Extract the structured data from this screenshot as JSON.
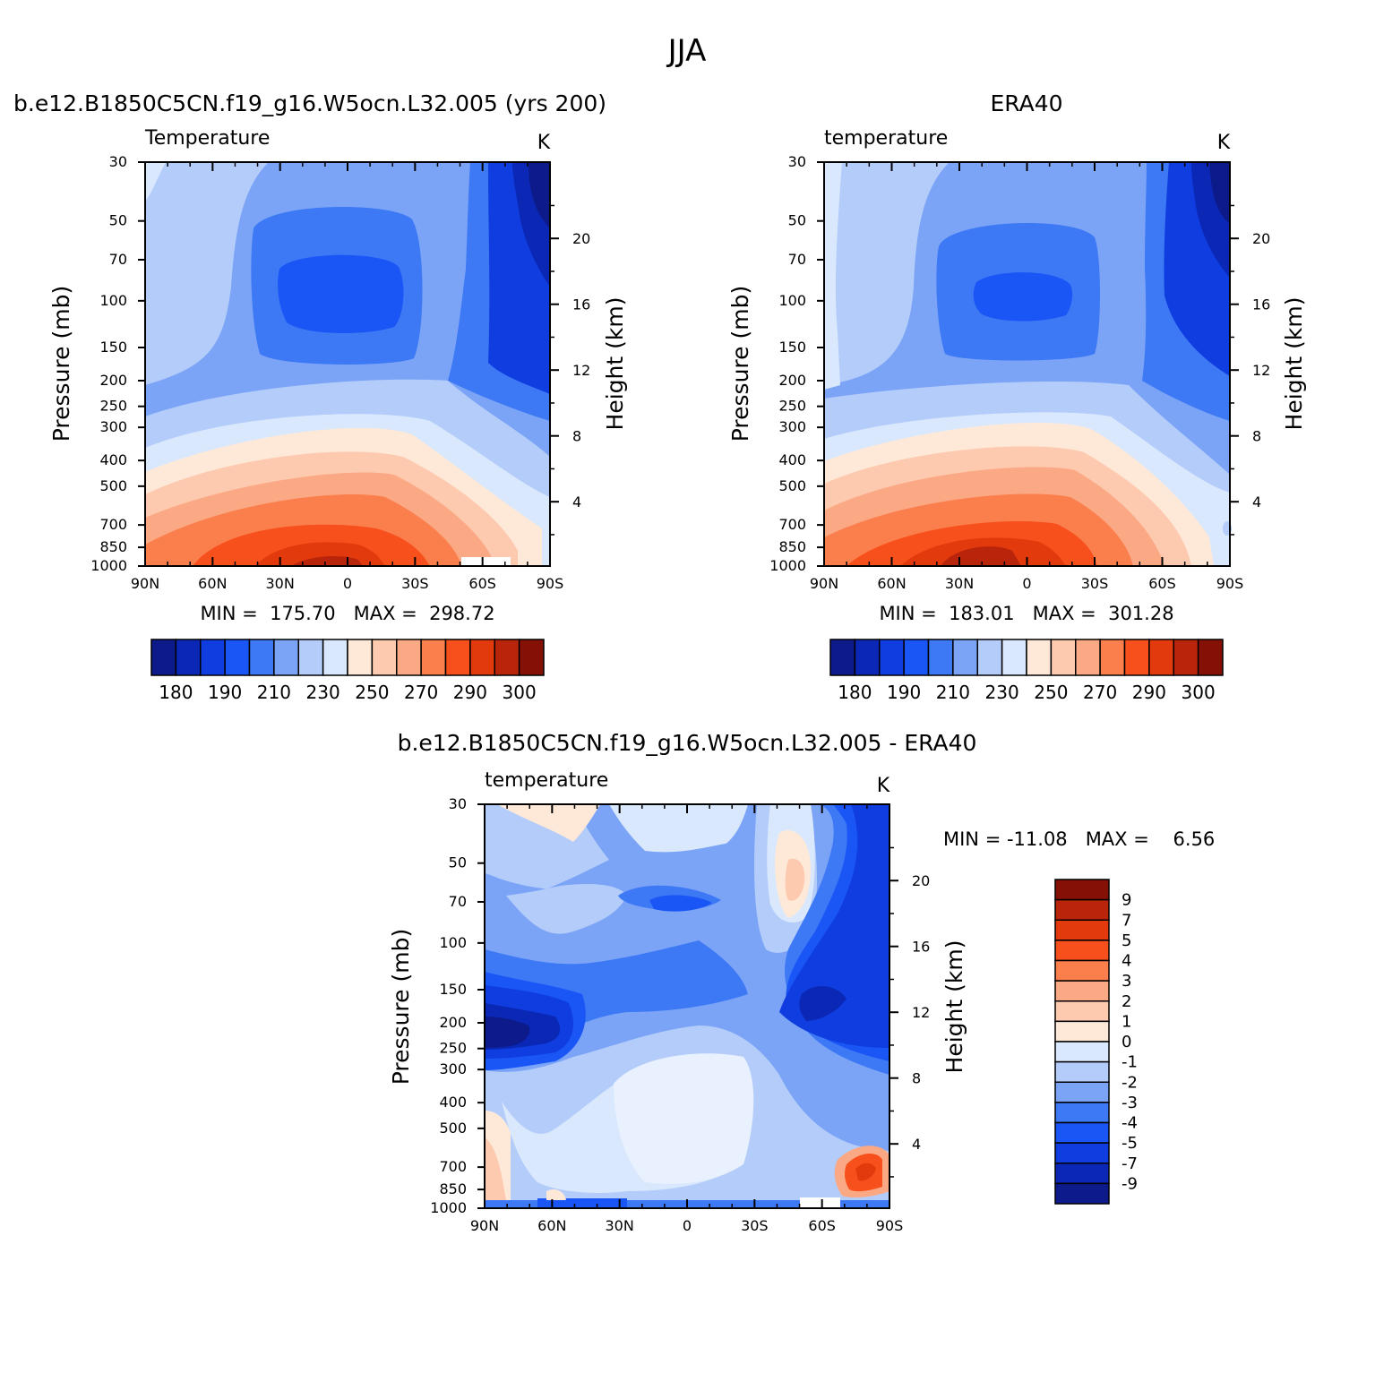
{
  "figure_title": "JJA",
  "colors": {
    "temp_fills": [
      "#0d1a8a",
      "#0a28b5",
      "#0f3de0",
      "#1a55f5",
      "#3d78f5",
      "#7ba4f7",
      "#b3ccfa",
      "#d9e8fc",
      "#fee9d9",
      "#fdcab0",
      "#fba985",
      "#fb7f4d",
      "#f8501c",
      "#e23a0d",
      "#b8250a",
      "#851006"
    ],
    "diff_fills": [
      "#0d1a8a",
      "#0a28b5",
      "#0f3de0",
      "#1a55f5",
      "#3d78f5",
      "#7ba4f7",
      "#b3ccfa",
      "#d9e8fc",
      "#fee9d9",
      "#fdcab0",
      "#fba985",
      "#fb7f4d",
      "#f8501c",
      "#e23a0d",
      "#b8250a",
      "#851006"
    ]
  },
  "chart_data": [
    {
      "type": "contour",
      "title": "b.e12.B1850C5CN.f19_g16.W5ocn.L32.005 (yrs 200)",
      "subtitle_left": "Temperature",
      "subtitle_right": "K",
      "ylabel": "Pressure (mb)",
      "ylabel_right": "Height (km)",
      "x_ticks": [
        "90N",
        "60N",
        "30N",
        "0",
        "30S",
        "60S",
        "90S"
      ],
      "y_ticks": [
        "30",
        "50",
        "70",
        "100",
        "150",
        "200",
        "250",
        "300",
        "400",
        "500",
        "700",
        "850",
        "1000"
      ],
      "y_right_ticks": [
        "20",
        "16",
        "12",
        "8",
        "4"
      ],
      "stats": "MIN =  175.70   MAX =  298.72",
      "colorbar_labels": [
        "180",
        "190",
        "210",
        "230",
        "250",
        "270",
        "290",
        "300"
      ],
      "min": 175.7,
      "max": 298.72
    },
    {
      "type": "contour",
      "title": "ERA40",
      "subtitle_left": "temperature",
      "subtitle_right": "K",
      "ylabel": "Pressure (mb)",
      "ylabel_right": "Height (km)",
      "x_ticks": [
        "90N",
        "60N",
        "30N",
        "0",
        "30S",
        "60S",
        "90S"
      ],
      "y_ticks": [
        "30",
        "50",
        "70",
        "100",
        "150",
        "200",
        "250",
        "300",
        "400",
        "500",
        "700",
        "850",
        "1000"
      ],
      "y_right_ticks": [
        "20",
        "16",
        "12",
        "8",
        "4"
      ],
      "stats": "MIN =  183.01   MAX =  301.28",
      "colorbar_labels": [
        "180",
        "190",
        "210",
        "230",
        "250",
        "270",
        "290",
        "300"
      ],
      "min": 183.01,
      "max": 301.28
    },
    {
      "type": "contour",
      "title": "b.e12.B1850C5CN.f19_g16.W5ocn.L32.005 - ERA40",
      "subtitle_left": "temperature",
      "subtitle_right": "K",
      "ylabel": "Pressure (mb)",
      "ylabel_right": "Height (km)",
      "x_ticks": [
        "90N",
        "60N",
        "30N",
        "0",
        "30S",
        "60S",
        "90S"
      ],
      "y_ticks": [
        "30",
        "50",
        "70",
        "100",
        "150",
        "200",
        "250",
        "300",
        "400",
        "500",
        "700",
        "850",
        "1000"
      ],
      "y_right_ticks": [
        "20",
        "16",
        "12",
        "8",
        "4"
      ],
      "stats": "MIN = -11.08   MAX =    6.56",
      "colorbar_labels": [
        "9",
        "7",
        "5",
        "4",
        "3",
        "2",
        "1",
        "0",
        "-1",
        "-2",
        "-3",
        "-4",
        "-5",
        "-7",
        "-9"
      ],
      "min": -11.08,
      "max": 6.56
    }
  ]
}
